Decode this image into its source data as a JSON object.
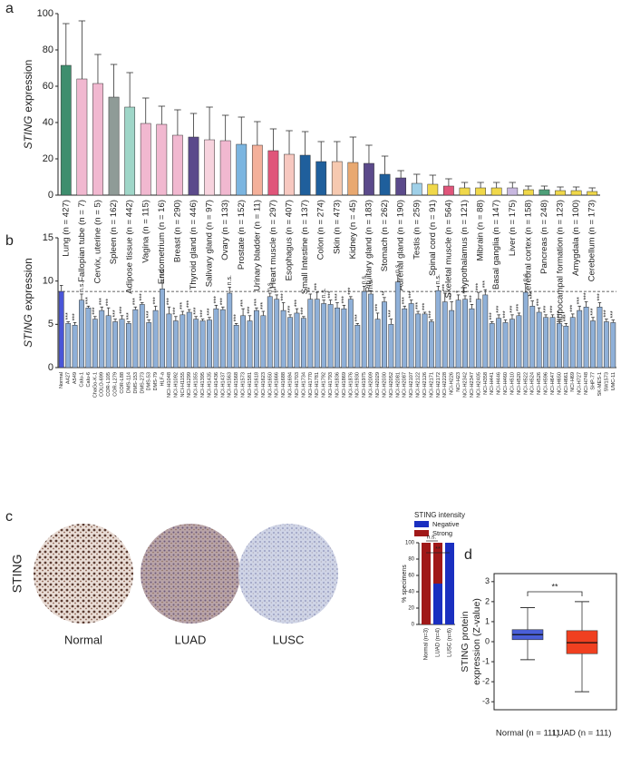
{
  "chart_data": [
    {
      "type": "bar",
      "panel": "a",
      "ylabel_italic": "STING",
      "ylabel": "expression",
      "ylim": [
        0,
        100
      ],
      "yticks": [
        0,
        20,
        40,
        60,
        80,
        100
      ],
      "categories": [
        "Lung (n = 427)",
        "Fallopian tube (n = 7)",
        "Cervix, uterine (n = 5)",
        "Spleen (n = 162)",
        "Adipose tissue (n = 442)",
        "Vagina (n = 115)",
        "Endometrium (n = 16)",
        "Breast (n = 290)",
        "Thyroid gland (n = 446)",
        "Salivary gland (n = 97)",
        "Ovary (n = 133)",
        "Prostate (n = 152)",
        "Urinary bladder (n = 11)",
        "Heart muscle (n = 297)",
        "Esophagus (n = 407)",
        "Small Intestine (n = 137)",
        "Colon (n = 274)",
        "Skin (n = 473)",
        "Kidney (n = 45)",
        "Pituitary gland (n = 183)",
        "Stomach (n = 262)",
        "Adrenal gland (n = 190)",
        "Testis (n = 259)",
        "Spinal cord (n = 91)",
        "Skeletal muscle (n = 564)",
        "Hypothalamus (n = 121)",
        "Mibrain (n = 88)",
        "Basal ganglia (n = 147)",
        "Liver (n = 175)",
        "Cerebral cortex (n = 158)",
        "Pancreas (n = 248)",
        "Hippocampal formation (n = 123)",
        "Amygdala (n = 100)",
        "Cerebellum (n = 173)"
      ],
      "values": [
        71.5,
        64,
        61.5,
        54,
        48.5,
        39.5,
        39,
        33,
        32,
        30.5,
        30,
        28,
        27.5,
        24.5,
        22.5,
        22,
        18.5,
        18.5,
        18,
        17.5,
        11.5,
        9.5,
        6.5,
        6,
        5,
        4,
        4,
        4,
        4,
        3,
        3,
        2.5,
        2.5,
        2
      ],
      "errors": [
        23,
        32,
        16,
        18,
        19,
        14,
        10,
        14,
        13,
        18,
        14,
        15,
        13,
        12,
        13,
        13,
        11,
        11,
        14,
        10,
        10,
        4,
        5,
        5,
        4,
        3,
        3,
        3,
        3,
        2,
        2,
        2,
        2,
        2
      ],
      "colors": [
        "#3e8e6e",
        "#f1b8d0",
        "#f1b8d0",
        "#8f9b97",
        "#9fd6c8",
        "#f1b8d0",
        "#f1b8d0",
        "#f1b8d0",
        "#5b4a8b",
        "#f7d3de",
        "#f1b8d0",
        "#7bb5e0",
        "#f4b09a",
        "#e0557a",
        "#f7c8c0",
        "#1f5f9c",
        "#1f5f9c",
        "#f6c9b0",
        "#e8a870",
        "#5b4a8b",
        "#1f5f9c",
        "#5b4a8b",
        "#9fd0e8",
        "#f0d84a",
        "#e0557a",
        "#f0d84a",
        "#f0d84a",
        "#f0d84a",
        "#c8b8e0",
        "#f0d84a",
        "#4fa07a",
        "#f0d84a",
        "#f0d84a",
        "#f0d84a"
      ]
    },
    {
      "type": "bar",
      "panel": "b",
      "ylabel_italic": "STING",
      "ylabel": "expression",
      "ylim": [
        0,
        15
      ],
      "yticks": [
        0,
        5,
        10,
        15
      ],
      "color": "#8fb0d8",
      "ref_color": "#4a56d8",
      "categories": [
        "Normal",
        "A427",
        "A549",
        "Calu-1",
        "Calu-6",
        "ChaGo-K-1",
        "COLO-699",
        "COR-L105",
        "COR-L279",
        "COR-L88",
        "DMS-114",
        "DMS-153",
        "DMS-273",
        "DMS-53",
        "DMS-79",
        "HLF-a",
        "NCI-H1048",
        "NCI-H1092",
        "NCI-H1155",
        "NCI-H1299",
        "NCI-H1355",
        "NCI-H1395",
        "NCI-H1435",
        "NCI-H1436",
        "NCI-H1437",
        "NCI-H1563",
        "NCI-H1568",
        "NCI-H1573",
        "NCI-H1581",
        "NCI-H1618",
        "NCI-H1623",
        "NCI-H1650",
        "NCI-H1666",
        "NCI-H1688",
        "NCI-H1694",
        "NCI-H1703",
        "NCI-H1734",
        "NCI-H1770",
        "NCI-H1781",
        "NCI-H1792",
        "NCI-H1793",
        "NCI-H1836",
        "NCI-H1869",
        "NCI-H1876",
        "NCI-H1930",
        "NCI-H1975",
        "NCI-H2009",
        "NCI-H2029",
        "NCI-H2030",
        "NCI-H2052",
        "NCI-H2081",
        "NCI-H2087",
        "NCI-H2107",
        "NCI-H2122",
        "NCI-H2126",
        "NCI-H2171",
        "NCI-H2172",
        "NCI-H2228",
        "NCI-H226",
        "NCI-H23",
        "NCI-H2342",
        "NCI-H2347",
        "NCI-H2405",
        "NCI-H358",
        "NCI-H441",
        "NCI-H446",
        "NCI-H460",
        "NCI-H510",
        "NCI-H520",
        "NCI-H522",
        "NCI-H524",
        "NCI-H526",
        "NCI-H596",
        "NCI-H647",
        "NCI-H650",
        "NCI-H661",
        "NCI-H69",
        "NCI-H727",
        "NCI-H748",
        "SHP-77",
        "SK-MES-1",
        "SW1573",
        "UMC-11"
      ],
      "values": [
        8.8,
        5.1,
        4.9,
        7.8,
        6.9,
        5.6,
        6.6,
        6.0,
        5.3,
        5.6,
        5.1,
        6.7,
        7.3,
        5.2,
        6.6,
        9.1,
        6.2,
        5.4,
        6.1,
        6.4,
        5.6,
        5.4,
        5.5,
        6.8,
        6.7,
        8.6,
        4.9,
        6.0,
        5.4,
        6.6,
        6.0,
        8.2,
        7.9,
        6.6,
        5.8,
        6.3,
        5.7,
        7.9,
        7.9,
        7.4,
        7.3,
        6.9,
        6.8,
        7.9,
        4.9,
        8.8,
        8.5,
        5.6,
        7.6,
        5.0,
        9.9,
        6.8,
        7.4,
        6.2,
        6.2,
        5.3,
        8.9,
        7.6,
        6.6,
        7.8,
        7.9,
        6.8,
        7.9,
        8.4,
        5.1,
        5.7,
        5.2,
        5.6,
        6.0,
        8.7,
        7.1,
        6.4,
        5.8,
        5.8,
        5.1,
        4.8,
        5.8,
        6.6,
        7.0,
        5.4,
        7.0,
        5.3,
        5.2
      ],
      "errors": [
        0.7,
        0.2,
        0.3,
        0.7,
        0.2,
        0.3,
        0.4,
        0.9,
        0.3,
        0.4,
        0.2,
        0.3,
        0.2,
        0.3,
        0.5,
        1.0,
        0.8,
        0.5,
        0.4,
        0.3,
        0.3,
        0.2,
        0.3,
        0.4,
        0.3,
        0.7,
        0.2,
        0.8,
        0.6,
        0.3,
        0.5,
        0.4,
        0.5,
        0.9,
        0.3,
        0.5,
        0.2,
        0.6,
        0.8,
        0.4,
        0.5,
        0.6,
        0.4,
        0.3,
        0.2,
        0.6,
        0.4,
        0.7,
        0.5,
        0.6,
        0.8,
        0.3,
        0.4,
        0.3,
        0.2,
        0.2,
        0.5,
        1.0,
        1.0,
        0.6,
        0.4,
        0.5,
        0.8,
        0.6,
        0.2,
        0.4,
        0.3,
        0.5,
        0.3,
        1.0,
        0.6,
        0.5,
        0.3,
        0.3,
        0.4,
        0.3,
        0.4,
        0.5,
        0.6,
        0.4,
        0.5,
        0.3,
        0.3
      ],
      "significance": [
        null,
        "***",
        "***",
        "n.s.",
        "***",
        "***",
        "***",
        "***",
        "***",
        "***",
        "***",
        "***",
        "***",
        "***",
        "***",
        "n.s.",
        "***",
        "***",
        "***",
        "***",
        "***",
        "***",
        "***",
        "***",
        "***",
        "n.s.",
        "***",
        "***",
        "***",
        "***",
        "***",
        "n.s.",
        "**",
        "***",
        "***",
        "***",
        "***",
        "**",
        "***",
        "n.s.",
        "***",
        "***",
        "***",
        "***",
        "***",
        "n.s.",
        "n.s.",
        "***",
        "**",
        "***",
        "n.s.",
        "***",
        "***",
        "***",
        "***",
        "***",
        "n.s.",
        "***",
        "***",
        "*",
        "***",
        "***",
        "***",
        "***",
        "***",
        "***",
        "***",
        "***",
        "***",
        "n.s.",
        "***",
        "***",
        "***",
        "***",
        "***",
        "***",
        "***",
        "***",
        "***",
        "***",
        "***",
        "***",
        "***"
      ]
    },
    {
      "type": "stacked_bar",
      "panel": "c",
      "row_label": "STING",
      "image_labels": [
        "Normal",
        "LUAD",
        "LUSC"
      ],
      "legend_title": "STING intensity",
      "ylabel": "% specimens",
      "ylim": [
        0,
        100
      ],
      "yticks": [
        0,
        20,
        40,
        60,
        80,
        100
      ],
      "categories": [
        "Normal (n=3)",
        "LUAD (n=4)",
        "LUSC (n=6)"
      ],
      "series": [
        {
          "name": "Negative",
          "color": "#1a2fc0",
          "values": [
            0,
            50,
            100
          ]
        },
        {
          "name": "Strong",
          "color": "#a01818",
          "values": [
            100,
            50,
            0
          ]
        }
      ],
      "annotations": [
        "n.s.",
        "**"
      ]
    },
    {
      "type": "box",
      "panel": "d",
      "ylabel": [
        "STING protein",
        "expression (Z-value)"
      ],
      "ylim": [
        -3.4,
        3.4
      ],
      "yticks": [
        3,
        2,
        1,
        0,
        -1,
        -2,
        -3
      ],
      "categories": [
        "Normal (n = 111)",
        "LUAD (n = 111)"
      ],
      "colors": [
        "#4a5fd8",
        "#f04020"
      ],
      "boxes": [
        {
          "min": -0.9,
          "q1": 0.1,
          "median": 0.35,
          "q3": 0.6,
          "max": 1.7
        },
        {
          "min": -2.5,
          "q1": -0.6,
          "median": -0.05,
          "q3": 0.55,
          "max": 2.0
        }
      ],
      "annotations": [
        "**"
      ]
    }
  ]
}
